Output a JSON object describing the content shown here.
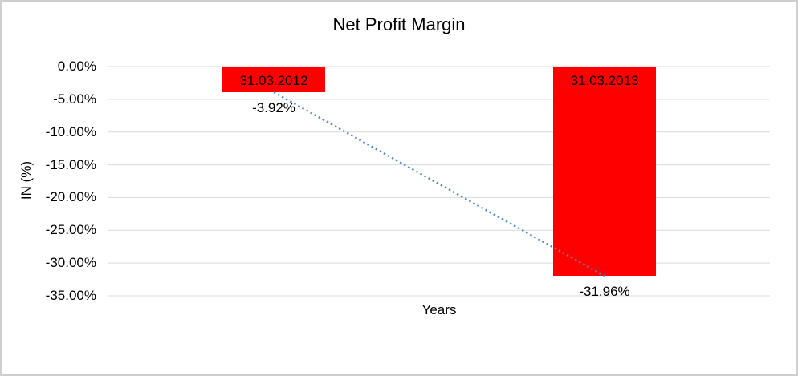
{
  "window": {
    "background": "#ffffff",
    "border_color": "#cfcfcf"
  },
  "chart_data": {
    "type": "bar",
    "title": "Net Profit Margin",
    "xlabel": "Years",
    "ylabel": "IN (%)",
    "categories": [
      "31.03.2012",
      "31.03.2013"
    ],
    "values": [
      -3.92,
      -31.96
    ],
    "data_labels": [
      "-3.92%",
      "-31.96%"
    ],
    "ylim": [
      -35,
      0
    ],
    "ytick_step": 5,
    "ytick_labels": [
      "0.00%",
      "-5.00%",
      "-10.00%",
      "-15.00%",
      "-20.00%",
      "-25.00%",
      "-30.00%",
      "-35.00%"
    ],
    "grid": "horizontal",
    "legend": "none",
    "bar_color": "#ff0000",
    "bar_label_color": "#000000",
    "gridline_color": "#d9d9d9",
    "text_color": "#000000",
    "trendline": {
      "type": "linear",
      "style": "dotted",
      "color": "#4e87c8",
      "from_value": -3.92,
      "to_value": -31.96
    }
  }
}
